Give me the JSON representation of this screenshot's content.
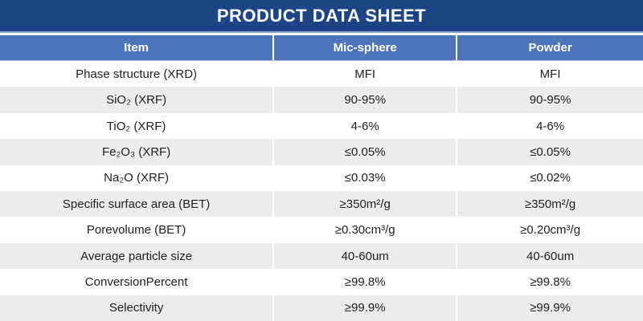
{
  "title_bar": {
    "title": "PRODUCT DATA SHEET"
  },
  "colors": {
    "title_bar_bg": "#1d4586",
    "title_underline": "#8ea9d2",
    "header_bg": "#4e75ba",
    "header_underline": "#b0c4e8",
    "stripe_row_bg": "#ececec",
    "title_text": "#ffffff",
    "header_text": "#ffffff",
    "cell_text": "#1f1f1f"
  },
  "chart_data": {
    "type": "table",
    "title": "PRODUCT DATA SHEET",
    "columns": [
      "Item",
      "Mic-sphere",
      "Powder"
    ],
    "rows": [
      [
        "Phase structure (XRD)",
        "MFI",
        "MFI"
      ],
      [
        "SiO₂ (XRF)",
        "90-95%",
        "90-95%"
      ],
      [
        "TiO₂ (XRF)",
        "4-6%",
        "4-6%"
      ],
      [
        "Fe₂O₃ (XRF)",
        "≤0.05%",
        "≤0.05%"
      ],
      [
        "Na₂O (XRF)",
        "≤0.03%",
        "≤0.02%"
      ],
      [
        "Specific surface area (BET)",
        "≥350m²/g",
        "≥350m²/g"
      ],
      [
        "Porevolume (BET)",
        "≥0.30cm³/g",
        "≥0.20cm³/g"
      ],
      [
        "Average particle size",
        "40-60um",
        "40-60um"
      ],
      [
        "ConversionPercent",
        "≥99.8%",
        "≥99.8%"
      ],
      [
        "Selectivity",
        "≥99.9%",
        "≥99.9%"
      ]
    ],
    "layout": {
      "column_widths_pct": [
        42.4,
        28.5,
        29.1
      ],
      "striped": true,
      "stripe_pattern": "even-data-rows-gray"
    }
  }
}
